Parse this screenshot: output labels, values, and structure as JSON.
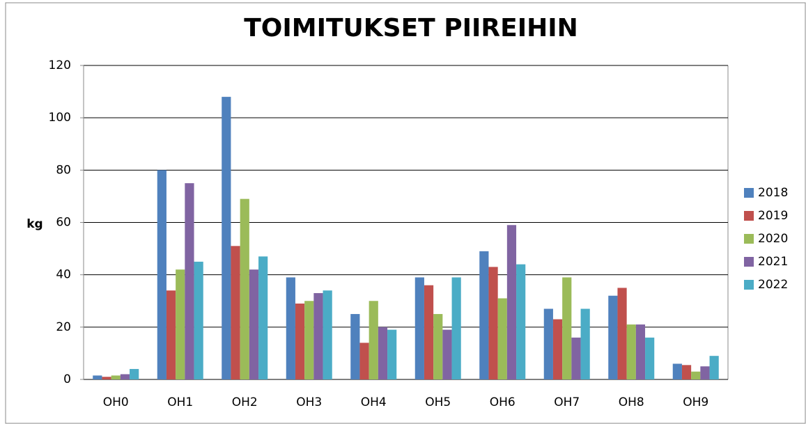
{
  "chart_data": {
    "type": "bar",
    "title": "TOIMITUKSET PIIREIHIN",
    "y_label": "kg",
    "categories": [
      "OH0",
      "OH1",
      "OH2",
      "OH3",
      "OH4",
      "OH5",
      "OH6",
      "OH7",
      "OH8",
      "OH9"
    ],
    "series": [
      {
        "name": "2018",
        "color": "#4f81bd",
        "values": [
          1.5,
          80,
          108,
          39,
          25,
          39,
          49,
          27,
          32,
          6
        ]
      },
      {
        "name": "2019",
        "color": "#c0504d",
        "values": [
          1,
          34,
          51,
          29,
          14,
          36,
          43,
          23,
          35,
          5.5
        ]
      },
      {
        "name": "2020",
        "color": "#9bbb59",
        "values": [
          1.5,
          42,
          69,
          30,
          30,
          25,
          31,
          39,
          21,
          3
        ]
      },
      {
        "name": "2021",
        "color": "#8064a2",
        "values": [
          2,
          75,
          42,
          33,
          20,
          19,
          59,
          16,
          21,
          5
        ]
      },
      {
        "name": "2022",
        "color": "#4bacc6",
        "values": [
          4,
          45,
          47,
          34,
          19,
          39,
          44,
          27,
          16,
          9
        ]
      }
    ],
    "ylim": [
      0,
      120
    ],
    "yticks": [
      0,
      20,
      40,
      60,
      80,
      100,
      120
    ],
    "grid": true,
    "legend": "right"
  }
}
